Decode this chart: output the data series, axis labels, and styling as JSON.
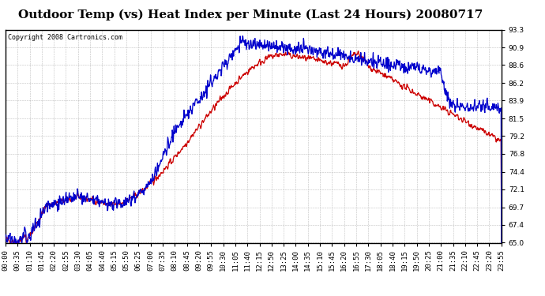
{
  "title": "Outdoor Temp (vs) Heat Index per Minute (Last 24 Hours) 20080717",
  "copyright": "Copyright 2008 Cartronics.com",
  "ylim": [
    65.0,
    93.3
  ],
  "yticks": [
    93.3,
    90.9,
    88.6,
    86.2,
    83.9,
    81.5,
    79.2,
    76.8,
    74.4,
    72.1,
    69.7,
    67.4,
    65.0
  ],
  "xtick_labels": [
    "00:00",
    "00:35",
    "01:10",
    "01:45",
    "02:20",
    "02:55",
    "03:30",
    "04:05",
    "04:40",
    "05:15",
    "05:50",
    "06:25",
    "07:00",
    "07:35",
    "08:10",
    "08:45",
    "09:20",
    "09:55",
    "10:30",
    "11:05",
    "11:40",
    "12:15",
    "12:50",
    "13:25",
    "14:00",
    "14:35",
    "15:10",
    "15:45",
    "16:20",
    "16:55",
    "17:30",
    "18:05",
    "18:40",
    "19:15",
    "19:50",
    "20:25",
    "21:00",
    "21:35",
    "22:10",
    "22:45",
    "23:20",
    "23:55"
  ],
  "temp_color": "#cc0000",
  "heat_color": "#0000cc",
  "bg_color": "#ffffff",
  "grid_color": "#b0b0b0",
  "title_fontsize": 11,
  "copyright_fontsize": 6,
  "tick_fontsize": 6.5
}
